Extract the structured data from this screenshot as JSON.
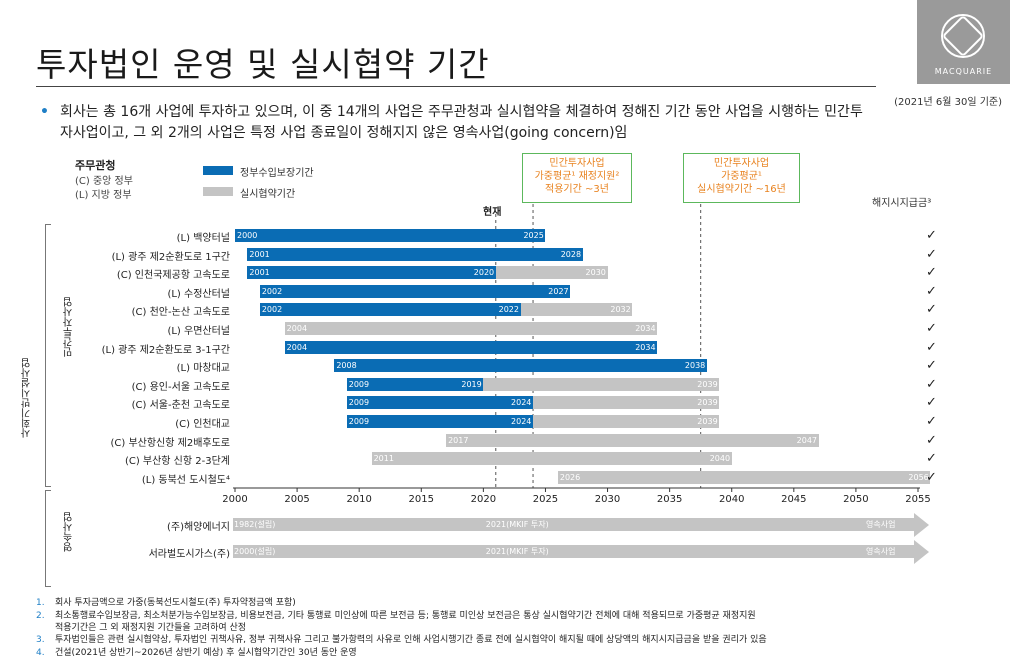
{
  "header": {
    "title": "투자법인 운영 및 실시협약 기간",
    "as_of": "(2021년 6월 30일 기준)",
    "logo_text": "MACQUARIE"
  },
  "bullet": {
    "text": "회사는 총 16개 사업에 투자하고 있으며, 이 중 14개의 사업은 주무관청과 실시협약을 체결하여 정해진 기간 동안 사업을 시행하는 민간투자사업이고, 그 외 2개의 사업은 특정 사업 종료일이 정해지지 않은 영속사업(going concern)임"
  },
  "legend": {
    "authority_title": "주무관청",
    "central": "(C) 중앙 정부",
    "local": "(L) 지방 정부",
    "blue_label": "정부수입보장기간",
    "grey_label": "실시협약기간"
  },
  "callouts": {
    "c1_line1": "민간투자사업",
    "c1_line2": "가중평균¹ 재정지원²",
    "c1_line3": "적용기간 ~3년",
    "c2_line1": "민간투자사업",
    "c2_line2": "가중평균¹",
    "c2_line3": "실시협약기간 ~16년"
  },
  "now_label": "현재",
  "termination_label": "해지시지급금³",
  "group_labels": {
    "outer": "사회기반시설사업",
    "inner": "민간투자사업",
    "going": "영속사업"
  },
  "colors": {
    "blue": "#0a6cb4",
    "grey": "#c4c4c4",
    "accent": "#e8821f",
    "callout_border": "#5cb85c"
  },
  "chart_data": {
    "type": "gantt",
    "x_axis": {
      "min": 2000,
      "max": 2055,
      "ticks": [
        2000,
        2005,
        2010,
        2015,
        2020,
        2025,
        2030,
        2035,
        2040,
        2045,
        2050,
        2055
      ]
    },
    "reference_lines": [
      {
        "label": "현재",
        "x": 2021
      },
      {
        "x": 2024
      },
      {
        "x": 2037.5
      }
    ],
    "series": [
      {
        "name": "(L) 백양터널",
        "start": 2000,
        "end": 2025,
        "blue_end": 2025,
        "start_label": "2000",
        "mid_label": "",
        "end_label": "2025",
        "check": "✓"
      },
      {
        "name": "(L) 광주 제2순환도로 1구간",
        "start": 2001,
        "end": 2028,
        "blue_end": 2028,
        "start_label": "2001",
        "mid_label": "",
        "end_label": "2028",
        "check": "✓"
      },
      {
        "name": "(C) 인천국제공항 고속도로",
        "start": 2001,
        "end": 2030,
        "blue_end": 2021,
        "start_label": "2001",
        "mid_label": "2020",
        "end_label": "2030",
        "check": "✓"
      },
      {
        "name": "(L) 수정산터널",
        "start": 2002,
        "end": 2027,
        "blue_end": 2027,
        "start_label": "2002",
        "mid_label": "",
        "end_label": "2027",
        "check": "✓"
      },
      {
        "name": "(C) 천안-논산 고속도로",
        "start": 2002,
        "end": 2032,
        "blue_end": 2023,
        "start_label": "2002",
        "mid_label": "2022",
        "end_label": "2032",
        "check": "✓"
      },
      {
        "name": "(L) 우면산터널",
        "start": 2004,
        "end": 2034,
        "blue_end": null,
        "start_label": "2004",
        "mid_label": "",
        "end_label": "2034",
        "check": "✓"
      },
      {
        "name": "(L) 광주 제2순환도로 3-1구간",
        "start": 2004,
        "end": 2034,
        "blue_end": 2034,
        "start_label": "2004",
        "mid_label": "",
        "end_label": "2034",
        "check": "✓"
      },
      {
        "name": "(L) 마창대교",
        "start": 2008,
        "end": 2038,
        "blue_end": 2038,
        "start_label": "2008",
        "mid_label": "",
        "end_label": "2038",
        "check": "✓"
      },
      {
        "name": "(C) 용인-서울 고속도로",
        "start": 2009,
        "end": 2039,
        "blue_end": 2020,
        "start_label": "2009",
        "mid_label": "2019",
        "end_label": "2039",
        "check": "✓"
      },
      {
        "name": "(C) 서울-춘천 고속도로",
        "start": 2009,
        "end": 2039,
        "blue_end": 2024,
        "start_label": "2009",
        "mid_label": "2024",
        "end_label": "2039",
        "check": "✓"
      },
      {
        "name": "(C) 인천대교",
        "start": 2009,
        "end": 2039,
        "blue_end": 2024,
        "start_label": "2009",
        "mid_label": "2024",
        "end_label": "2039",
        "check": "✓"
      },
      {
        "name": "(C) 부산항신항 제2배후도로",
        "start": 2017,
        "end": 2047,
        "blue_end": null,
        "start_label": "2017",
        "mid_label": "",
        "end_label": "2047",
        "check": "✓"
      },
      {
        "name": "(C) 부산항 신항 2-3단계",
        "start": 2011,
        "end": 2040,
        "blue_end": null,
        "start_label": "2011",
        "mid_label": "",
        "end_label": "2040",
        "check": "✓"
      },
      {
        "name": "(L) 동북선 도시철도⁴",
        "start": 2026,
        "end": 2056,
        "blue_end": null,
        "start_label": "2026",
        "mid_label": "",
        "end_label": "2056",
        "check": "✓"
      }
    ],
    "going_concern": [
      {
        "name": "(주)해양에너지",
        "start_label": "1982(설립)",
        "mid_label": "2021(MKIF 투자)",
        "end_label": "영속사업"
      },
      {
        "name": "서라벌도시가스(주)",
        "start_label": "2000(설립)",
        "mid_label": "2021(MKIF 투자)",
        "end_label": "영속사업"
      }
    ]
  },
  "footnotes": [
    {
      "num": "1.",
      "text": "회사 투자금액으로 가중(동북선도시철도(주) 투자약정금액 포함)",
      "cont": ""
    },
    {
      "num": "2.",
      "text": "최소통행료수입보장금, 최소처분가능수입보장금, 비용보전금, 기타 통행료 미인상에 따른 보전금 등; 통행료 미인상 보전금은 통상 실시협약기간 전체에 대해 적용되므로 가중평균 재정지원",
      "cont": "적용기간은 그 외 재정지원 기간들을 고려하여 산정"
    },
    {
      "num": "3.",
      "text": "투자법인들은 관련 실시협약상, 투자법인 귀책사유, 정부 귀책사유 그리고 불가항력의 사유로 인해 사업시행기간 종료 전에 실시협약이 해지될 때에 상당액의 해지시지급금을 받을 권리가 있음",
      "cont": ""
    },
    {
      "num": "4.",
      "text": "건설(2021년 상반기~2026년 상반기 예상) 후 실시협약기간인 30년 동안 운영",
      "cont": ""
    }
  ]
}
